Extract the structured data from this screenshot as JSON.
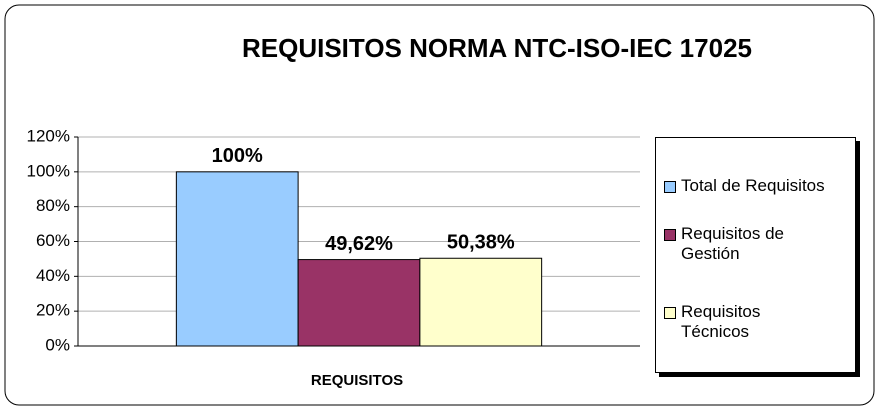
{
  "chart_data": {
    "type": "bar",
    "title": "REQUISITOS NORMA NTC-ISO-IEC 17025",
    "categories": [
      "REQUISITOS"
    ],
    "series": [
      {
        "name": "Total de Requisitos",
        "color": "#99ccff",
        "values": [
          100
        ],
        "value_labels": [
          "100%"
        ]
      },
      {
        "name": "Requisitos de Gestión",
        "color": "#993366",
        "values": [
          49.62
        ],
        "value_labels": [
          "49,62%"
        ]
      },
      {
        "name": "Requisitos Técnicos",
        "color": "#ffffcc",
        "values": [
          50.38
        ],
        "value_labels": [
          "50,38%"
        ]
      }
    ],
    "ylim": [
      0,
      120
    ],
    "yticks": [
      {
        "value": 0,
        "label": "0%"
      },
      {
        "value": 20,
        "label": "20%"
      },
      {
        "value": 40,
        "label": "40%"
      },
      {
        "value": 60,
        "label": "60%"
      },
      {
        "value": 80,
        "label": "80%"
      },
      {
        "value": 100,
        "label": "100%"
      },
      {
        "value": 120,
        "label": "120%"
      }
    ],
    "grid": true,
    "legend": "right"
  }
}
